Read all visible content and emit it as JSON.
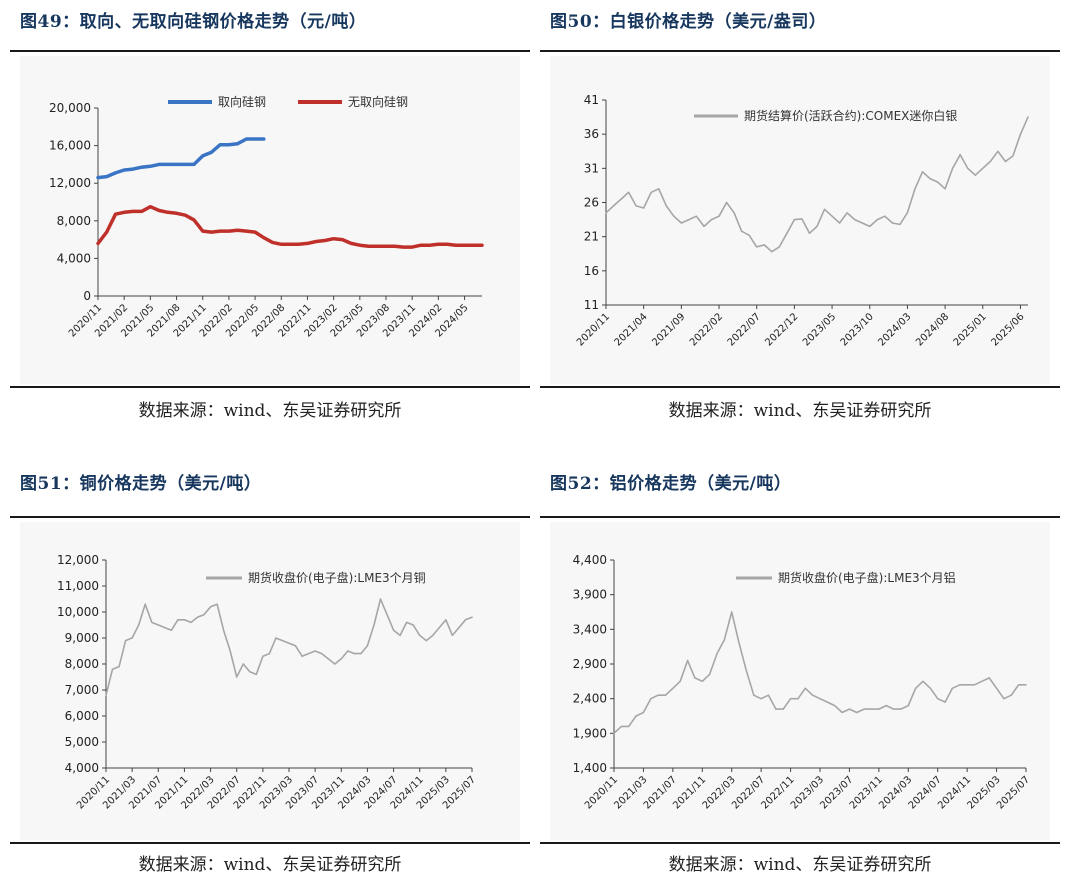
{
  "figures": [
    {
      "title": "图49：取向、无取向硅钢价格走势（元/吨）",
      "source": "数据来源：wind、东吴证券研究所"
    },
    {
      "title": "图50：白银价格走势（美元/盎司）",
      "source": "数据来源：wind、东吴证券研究所"
    },
    {
      "title": "图51：铜价格走势（美元/吨）",
      "source": "数据来源：wind、东吴证券研究所"
    },
    {
      "title": "图52：铝价格走势（美元/吨）",
      "source": "数据来源：wind、东吴证券研究所"
    }
  ],
  "chart_data": [
    {
      "type": "line",
      "title": "图49：取向、无取向硅钢价格走势（元/吨）",
      "ylim": [
        0,
        20000
      ],
      "yticks": [
        "0",
        "4,000",
        "8,000",
        "12,000",
        "16,000",
        "20,000"
      ],
      "xticks": [
        "2020/11",
        "2021/02",
        "2021/05",
        "2021/08",
        "2021/11",
        "2022/02",
        "2022/05",
        "2022/08",
        "2022/11",
        "2023/02",
        "2023/05",
        "2023/08",
        "2023/11",
        "2024/02",
        "2024/05"
      ],
      "x_range": [
        "2020/11",
        "2024/07"
      ],
      "legend_position": "top",
      "grid": false,
      "series": [
        {
          "name": "取向硅钢",
          "color": "#3a74c4",
          "x": [
            "2020/11",
            "2020/12",
            "2021/01",
            "2021/02",
            "2021/03",
            "2021/04",
            "2021/05",
            "2021/06",
            "2021/07",
            "2021/08",
            "2021/09",
            "2021/10",
            "2021/11",
            "2021/12",
            "2022/01",
            "2022/02",
            "2022/03",
            "2022/04",
            "2022/05",
            "2022/06"
          ],
          "y": [
            12600,
            12700,
            13100,
            13400,
            13500,
            13700,
            13800,
            14000,
            14000,
            14000,
            14000,
            14000,
            14900,
            15300,
            16100,
            16100,
            16200,
            16700,
            16700,
            16700
          ]
        },
        {
          "name": "无取向硅钢",
          "color": "#c0302b",
          "x": [
            "2020/11",
            "2020/12",
            "2021/01",
            "2021/02",
            "2021/03",
            "2021/04",
            "2021/05",
            "2021/06",
            "2021/07",
            "2021/08",
            "2021/09",
            "2021/10",
            "2021/11",
            "2021/12",
            "2022/01",
            "2022/02",
            "2022/03",
            "2022/04",
            "2022/05",
            "2022/06",
            "2022/07",
            "2022/08",
            "2022/09",
            "2022/10",
            "2022/11",
            "2022/12",
            "2023/01",
            "2023/02",
            "2023/03",
            "2023/04",
            "2023/05",
            "2023/06",
            "2023/07",
            "2023/08",
            "2023/09",
            "2023/10",
            "2023/11",
            "2023/12",
            "2024/01",
            "2024/02",
            "2024/03",
            "2024/04",
            "2024/05",
            "2024/06",
            "2024/07"
          ],
          "y": [
            5600,
            6800,
            8700,
            8900,
            9000,
            9000,
            9500,
            9100,
            8900,
            8800,
            8600,
            8100,
            6900,
            6800,
            6900,
            6900,
            7000,
            6900,
            6800,
            6200,
            5700,
            5500,
            5500,
            5500,
            5600,
            5800,
            5900,
            6100,
            6000,
            5600,
            5400,
            5300,
            5300,
            5300,
            5300,
            5200,
            5200,
            5400,
            5400,
            5500,
            5500,
            5400,
            5400,
            5400,
            5400
          ]
        }
      ]
    },
    {
      "type": "line",
      "ylim": [
        11,
        41
      ],
      "yticks": [
        "11",
        "16",
        "21",
        "26",
        "31",
        "36",
        "41"
      ],
      "xticks": [
        "2020/11",
        "2021/04",
        "2021/09",
        "2022/02",
        "2022/07",
        "2022/12",
        "2023/05",
        "2023/10",
        "2024/03",
        "2024/08",
        "2025/01",
        "2025/06"
      ],
      "x_range": [
        "2020/11",
        "2025/07"
      ],
      "legend_position": "top",
      "grid": false,
      "series": [
        {
          "name": "期货结算价(活跃合约):COMEX迷你白银",
          "color": "#a6a6a6",
          "x": [
            "2020/11",
            "2020/12",
            "2021/01",
            "2021/02",
            "2021/03",
            "2021/04",
            "2021/05",
            "2021/06",
            "2021/07",
            "2021/08",
            "2021/09",
            "2021/10",
            "2021/11",
            "2021/12",
            "2022/01",
            "2022/02",
            "2022/03",
            "2022/04",
            "2022/05",
            "2022/06",
            "2022/07",
            "2022/08",
            "2022/09",
            "2022/10",
            "2022/11",
            "2022/12",
            "2023/01",
            "2023/02",
            "2023/03",
            "2023/04",
            "2023/05",
            "2023/06",
            "2023/07",
            "2023/08",
            "2023/09",
            "2023/10",
            "2023/11",
            "2023/12",
            "2024/01",
            "2024/02",
            "2024/03",
            "2024/04",
            "2024/05",
            "2024/06",
            "2024/07",
            "2024/08",
            "2024/09",
            "2024/10",
            "2024/11",
            "2024/12",
            "2025/01",
            "2025/02",
            "2025/03",
            "2025/04",
            "2025/05",
            "2025/06",
            "2025/07"
          ],
          "y": [
            24.5,
            25.5,
            26.5,
            27.5,
            25.5,
            25.2,
            27.5,
            28,
            25.5,
            24,
            23,
            23.5,
            24,
            22.5,
            23.5,
            24,
            26,
            24.5,
            21.8,
            21.2,
            19.5,
            19.8,
            18.8,
            19.5,
            21.5,
            23.5,
            23.6,
            21.5,
            22.5,
            25,
            24,
            23,
            24.5,
            23.5,
            23,
            22.5,
            23.5,
            24,
            23,
            22.8,
            24.5,
            28,
            30.5,
            29.5,
            29,
            28,
            31,
            33,
            31,
            30,
            31,
            32,
            33.5,
            32,
            32.8,
            36,
            38.5
          ]
        }
      ]
    },
    {
      "type": "line",
      "ylim": [
        4000,
        12000
      ],
      "yticks": [
        "4,000",
        "5,000",
        "6,000",
        "7,000",
        "8,000",
        "9,000",
        "10,000",
        "11,000",
        "12,000"
      ],
      "xticks": [
        "2020/11",
        "2021/03",
        "2021/07",
        "2021/11",
        "2022/03",
        "2022/07",
        "2022/11",
        "2023/03",
        "2023/07",
        "2023/11",
        "2024/03",
        "2024/07",
        "2024/11",
        "2025/03",
        "2025/07"
      ],
      "x_range": [
        "2020/11",
        "2025/07"
      ],
      "legend_position": "top",
      "grid": false,
      "series": [
        {
          "name": "期货收盘价(电子盘):LME3个月铜",
          "color": "#a6a6a6",
          "x": [
            "2020/11",
            "2020/12",
            "2021/01",
            "2021/02",
            "2021/03",
            "2021/04",
            "2021/05",
            "2021/06",
            "2021/07",
            "2021/08",
            "2021/09",
            "2021/10",
            "2021/11",
            "2021/12",
            "2022/01",
            "2022/02",
            "2022/03",
            "2022/04",
            "2022/05",
            "2022/06",
            "2022/07",
            "2022/08",
            "2022/09",
            "2022/10",
            "2022/11",
            "2022/12",
            "2023/01",
            "2023/02",
            "2023/03",
            "2023/04",
            "2023/05",
            "2023/06",
            "2023/07",
            "2023/08",
            "2023/09",
            "2023/10",
            "2023/11",
            "2023/12",
            "2024/01",
            "2024/02",
            "2024/03",
            "2024/04",
            "2024/05",
            "2024/06",
            "2024/07",
            "2024/08",
            "2024/09",
            "2024/10",
            "2024/11",
            "2024/12",
            "2025/01",
            "2025/02",
            "2025/03",
            "2025/04",
            "2025/05",
            "2025/06",
            "2025/07"
          ],
          "y": [
            6800,
            7800,
            7900,
            8900,
            9000,
            9500,
            10300,
            9600,
            9500,
            9400,
            9300,
            9700,
            9700,
            9600,
            9800,
            9900,
            10200,
            10300,
            9300,
            8500,
            7500,
            8000,
            7700,
            7600,
            8300,
            8400,
            9000,
            8900,
            8800,
            8700,
            8300,
            8400,
            8500,
            8400,
            8200,
            8000,
            8200,
            8500,
            8400,
            8400,
            8700,
            9500,
            10500,
            9900,
            9300,
            9100,
            9600,
            9500,
            9100,
            8900,
            9100,
            9400,
            9700,
            9100,
            9400,
            9700,
            9800
          ]
        }
      ]
    },
    {
      "type": "line",
      "ylim": [
        1400,
        4400
      ],
      "yticks": [
        "1,400",
        "1,900",
        "2,400",
        "2,900",
        "3,400",
        "3,900",
        "4,400"
      ],
      "xticks": [
        "2020/11",
        "2021/03",
        "2021/07",
        "2021/11",
        "2022/03",
        "2022/07",
        "2022/11",
        "2023/03",
        "2023/07",
        "2023/11",
        "2024/03",
        "2024/07",
        "2024/11",
        "2025/03",
        "2025/07"
      ],
      "x_range": [
        "2020/11",
        "2025/07"
      ],
      "legend_position": "top",
      "grid": false,
      "series": [
        {
          "name": "期货收盘价(电子盘):LME3个月铝",
          "color": "#a6a6a6",
          "x": [
            "2020/11",
            "2020/12",
            "2021/01",
            "2021/02",
            "2021/03",
            "2021/04",
            "2021/05",
            "2021/06",
            "2021/07",
            "2021/08",
            "2021/09",
            "2021/10",
            "2021/11",
            "2021/12",
            "2022/01",
            "2022/02",
            "2022/03",
            "2022/04",
            "2022/05",
            "2022/06",
            "2022/07",
            "2022/08",
            "2022/09",
            "2022/10",
            "2022/11",
            "2022/12",
            "2023/01",
            "2023/02",
            "2023/03",
            "2023/04",
            "2023/05",
            "2023/06",
            "2023/07",
            "2023/08",
            "2023/09",
            "2023/10",
            "2023/11",
            "2023/12",
            "2024/01",
            "2024/02",
            "2024/03",
            "2024/04",
            "2024/05",
            "2024/06",
            "2024/07",
            "2024/08",
            "2024/09",
            "2024/10",
            "2024/11",
            "2024/12",
            "2025/01",
            "2025/02",
            "2025/03",
            "2025/04",
            "2025/05",
            "2025/06",
            "2025/07"
          ],
          "y": [
            1900,
            2000,
            2000,
            2150,
            2200,
            2400,
            2450,
            2450,
            2550,
            2650,
            2950,
            2700,
            2650,
            2750,
            3050,
            3250,
            3650,
            3200,
            2800,
            2450,
            2400,
            2450,
            2250,
            2250,
            2400,
            2400,
            2550,
            2450,
            2400,
            2350,
            2300,
            2200,
            2250,
            2200,
            2250,
            2250,
            2250,
            2300,
            2250,
            2250,
            2300,
            2550,
            2650,
            2550,
            2400,
            2350,
            2550,
            2600,
            2600,
            2600,
            2650,
            2700,
            2550,
            2400,
            2450,
            2600,
            2600
          ]
        }
      ]
    }
  ]
}
